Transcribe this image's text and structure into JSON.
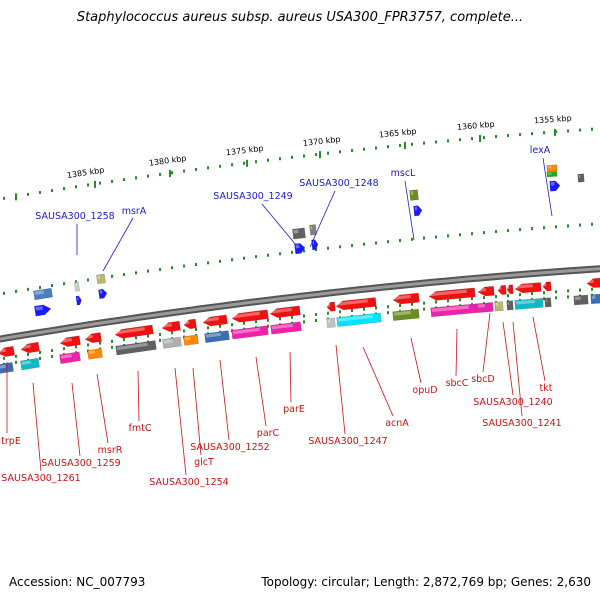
{
  "title": "Staphylococcus aureus subsp. aureus USA300_FPR3757, complete...",
  "footer": {
    "accession": "Accession: NC_007793",
    "summary": "Topology: circular; Length: 2,872,769 bp; Genes: 2,630"
  },
  "colors": {
    "backbone": "#7f7f7f",
    "tick": "#2a8a2a",
    "kbp_label": "#000000",
    "plus_label": "#1a1acc",
    "minus_label": "#cc1111"
  },
  "ruler": [
    {
      "label": "1385 kbp"
    },
    {
      "label": "1380 kbp"
    },
    {
      "label": "1375 kbp"
    },
    {
      "label": "1370 kbp"
    },
    {
      "label": "1365 kbp"
    },
    {
      "label": "1360 kbp"
    },
    {
      "label": "1355 kbp"
    }
  ],
  "plus_labels": [
    {
      "text": "SAUSA300_1258"
    },
    {
      "text": "msrA"
    },
    {
      "text": "SAUSA300_1249"
    },
    {
      "text": "SAUSA300_1248"
    },
    {
      "text": "mscL"
    },
    {
      "text": "lexA"
    }
  ],
  "minus_labels": [
    {
      "text": "trpE"
    },
    {
      "text": "SAUSA300_1261"
    },
    {
      "text": "SAUSA300_1259"
    },
    {
      "text": "msrR"
    },
    {
      "text": "fmtC"
    },
    {
      "text": "SAUSA300_1254"
    },
    {
      "text": "glcT"
    },
    {
      "text": "SAUSA300_1252"
    },
    {
      "text": "parC"
    },
    {
      "text": "parE"
    },
    {
      "text": "SAUSA300_1247"
    },
    {
      "text": "acnA"
    },
    {
      "text": "opuD"
    },
    {
      "text": "sbcC"
    },
    {
      "text": "sbcD"
    },
    {
      "text": "SAUSA300_1240"
    },
    {
      "text": "SAUSA300_1241"
    },
    {
      "text": "tkt"
    }
  ]
}
